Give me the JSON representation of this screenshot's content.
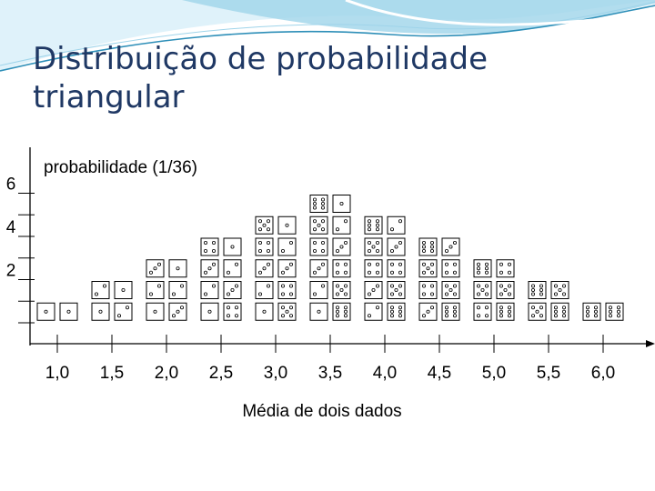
{
  "slide": {
    "title_line1": "Distribuição de probabilidade",
    "title_line2": "triangular"
  },
  "colors": {
    "title": "#1f3864",
    "axis": "#000000",
    "wave_dark": "#2e8fb8",
    "wave_light": "#9fd4ea"
  },
  "chart_data": {
    "type": "bar",
    "title": "",
    "ylabel": "probabilidade (1/36)",
    "xlabel": "Média de dois dados",
    "categories": [
      "1,0",
      "1,5",
      "2,0",
      "2,5",
      "3,0",
      "3,5",
      "4,0",
      "4,5",
      "5,0",
      "5,5",
      "6,0"
    ],
    "values": [
      1,
      2,
      3,
      4,
      5,
      6,
      5,
      4,
      3,
      2,
      1
    ],
    "ylim": [
      0,
      6
    ],
    "yticks": [
      "2",
      "4",
      "6"
    ],
    "ytick_values": [
      2,
      4,
      6
    ],
    "dice_pairs": [
      [
        [
          1,
          1
        ]
      ],
      [
        [
          1,
          2
        ],
        [
          2,
          1
        ]
      ],
      [
        [
          1,
          3
        ],
        [
          2,
          2
        ],
        [
          3,
          1
        ]
      ],
      [
        [
          1,
          4
        ],
        [
          2,
          3
        ],
        [
          3,
          2
        ],
        [
          4,
          1
        ]
      ],
      [
        [
          1,
          5
        ],
        [
          2,
          4
        ],
        [
          3,
          3
        ],
        [
          4,
          2
        ],
        [
          5,
          1
        ]
      ],
      [
        [
          1,
          6
        ],
        [
          2,
          5
        ],
        [
          3,
          4
        ],
        [
          4,
          3
        ],
        [
          5,
          2
        ],
        [
          6,
          1
        ]
      ],
      [
        [
          2,
          6
        ],
        [
          3,
          5
        ],
        [
          4,
          4
        ],
        [
          5,
          3
        ],
        [
          6,
          2
        ]
      ],
      [
        [
          3,
          6
        ],
        [
          4,
          5
        ],
        [
          5,
          4
        ],
        [
          6,
          3
        ]
      ],
      [
        [
          4,
          6
        ],
        [
          5,
          5
        ],
        [
          6,
          4
        ]
      ],
      [
        [
          5,
          6
        ],
        [
          6,
          5
        ]
      ],
      [
        [
          6,
          6
        ]
      ]
    ],
    "grid": false,
    "legend": "none"
  }
}
